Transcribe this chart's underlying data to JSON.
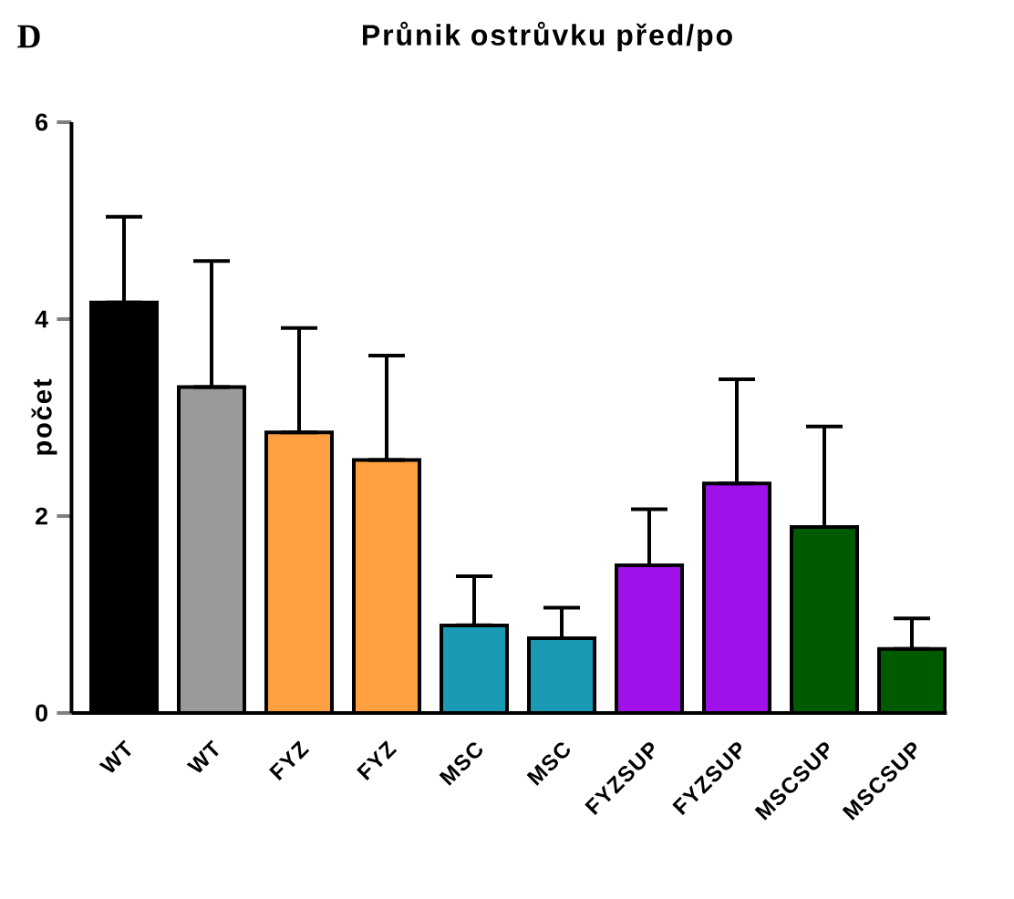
{
  "chart_data": {
    "type": "bar",
    "title": "Průnik ostrůvku před/po",
    "ylabel": "počet",
    "annotations": [
      "D"
    ],
    "categories": [
      "WT",
      "WT",
      "FYZ",
      "FYZ",
      "MSC",
      "MSC",
      "FYZSUP",
      "FYZSUP",
      "MSCSUP",
      "MSCSUP"
    ],
    "values": [
      4.17,
      3.31,
      2.85,
      2.57,
      0.89,
      0.76,
      1.5,
      2.33,
      1.89,
      0.65
    ],
    "colors": [
      "#000000",
      "#9a9a9a",
      "#ffa040",
      "#ffa040",
      "#1a9ab5",
      "#1a9ab5",
      "#a010e8",
      "#a010e8",
      "#005a00",
      "#005a00"
    ],
    "errors": [
      [
        4.17,
        5.04
      ],
      [
        3.31,
        4.59
      ],
      [
        2.85,
        3.91
      ],
      [
        2.57,
        3.63
      ],
      [
        0.89,
        1.39
      ],
      [
        0.76,
        1.07
      ],
      [
        1.5,
        2.07
      ],
      [
        2.33,
        3.39
      ],
      [
        1.89,
        2.91
      ],
      [
        0.65,
        0.96
      ]
    ],
    "ylim": [
      0,
      6
    ],
    "yticks": [
      0,
      2,
      4,
      6
    ],
    "grid": false
  }
}
